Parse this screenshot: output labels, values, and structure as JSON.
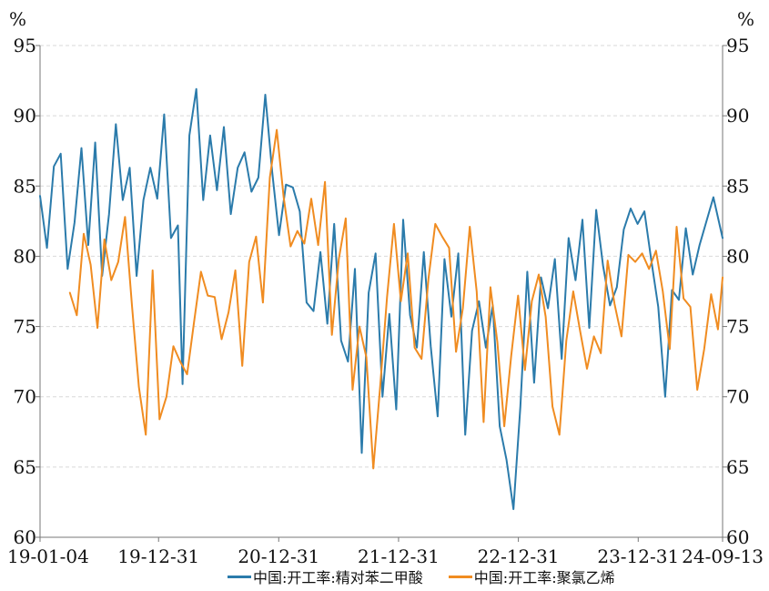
{
  "chart_data": {
    "type": "line",
    "title": "",
    "xlabel": "",
    "ylabel_left": "%",
    "ylabel_right": "%",
    "ylim": [
      60,
      95
    ],
    "yticks": [
      60,
      65,
      70,
      75,
      80,
      85,
      90,
      95
    ],
    "grid": true,
    "x_start": "2019-01-04",
    "x_end": "2024-09-13",
    "xtick_labels": [
      "19-01-04",
      "19-12-31",
      "20-12-31",
      "21-12-31",
      "22-12-31",
      "23-12-31",
      "24-09-13"
    ],
    "xtick_dates": [
      "2019-01-04",
      "2019-12-31",
      "2020-12-31",
      "2021-12-31",
      "2022-12-31",
      "2023-12-31",
      "2024-09-13"
    ],
    "legend_position": "bottom",
    "series": [
      {
        "name": "中国:开工率:精对苯二甲酸",
        "color": "#2b7bab",
        "dates": [
          "2019-01-04",
          "2019-01-25",
          "2019-02-15",
          "2019-03-08",
          "2019-03-29",
          "2019-04-19",
          "2019-05-10",
          "2019-05-31",
          "2019-06-21",
          "2019-07-12",
          "2019-08-02",
          "2019-08-23",
          "2019-09-13",
          "2019-10-04",
          "2019-10-25",
          "2019-11-15",
          "2019-12-06",
          "2019-12-27",
          "2020-01-17",
          "2020-02-07",
          "2020-02-28",
          "2020-03-13",
          "2020-04-03",
          "2020-04-24",
          "2020-05-15",
          "2020-06-05",
          "2020-06-26",
          "2020-07-17",
          "2020-08-07",
          "2020-08-28",
          "2020-09-18",
          "2020-10-09",
          "2020-10-30",
          "2020-11-20",
          "2020-12-11",
          "2021-01-01",
          "2021-01-22",
          "2021-02-12",
          "2021-03-05",
          "2021-03-26",
          "2021-04-16",
          "2021-05-07",
          "2021-05-28",
          "2021-06-18",
          "2021-07-09",
          "2021-07-30",
          "2021-08-20",
          "2021-09-10",
          "2021-10-01",
          "2021-10-22",
          "2021-11-12",
          "2021-12-03",
          "2021-12-24",
          "2022-01-14",
          "2022-02-04",
          "2022-02-25",
          "2022-03-18",
          "2022-04-08",
          "2022-04-29",
          "2022-05-20",
          "2022-06-10",
          "2022-07-01",
          "2022-07-22",
          "2022-08-12",
          "2022-09-02",
          "2022-09-23",
          "2022-10-14",
          "2022-11-04",
          "2022-11-25",
          "2022-12-16",
          "2023-01-06",
          "2023-01-27",
          "2023-02-17",
          "2023-03-10",
          "2023-03-31",
          "2023-04-21",
          "2023-05-12",
          "2023-06-02",
          "2023-06-23",
          "2023-07-14",
          "2023-08-04",
          "2023-08-25",
          "2023-09-15",
          "2023-10-06",
          "2023-10-27",
          "2023-11-17",
          "2023-12-08",
          "2023-12-29",
          "2024-01-19",
          "2024-02-09",
          "2024-03-01",
          "2024-03-22",
          "2024-04-12",
          "2024-05-03",
          "2024-05-24",
          "2024-06-14",
          "2024-07-05",
          "2024-07-26",
          "2024-08-16",
          "2024-09-13"
        ],
        "values": [
          84.3,
          80.6,
          86.4,
          87.3,
          79.1,
          82.4,
          87.7,
          80.8,
          88.1,
          78.6,
          83.0,
          89.4,
          84.0,
          86.3,
          78.6,
          84.0,
          86.3,
          84.1,
          90.1,
          81.3,
          82.2,
          70.9,
          88.6,
          91.9,
          84.0,
          88.6,
          84.7,
          89.2,
          83.0,
          86.3,
          87.4,
          84.6,
          85.6,
          91.5,
          86.0,
          81.5,
          85.1,
          84.9,
          83.2,
          76.7,
          76.1,
          80.3,
          75.2,
          82.3,
          74.0,
          72.5,
          79.1,
          66.0,
          77.4,
          80.2,
          70.0,
          75.9,
          69.1,
          82.6,
          75.8,
          73.5,
          80.3,
          73.6,
          68.6,
          79.8,
          75.7,
          80.2,
          67.3,
          74.7,
          76.8,
          73.5,
          76.5,
          67.9,
          65.5,
          62.0,
          69.3,
          78.9,
          71.0,
          78.5,
          76.3,
          79.8,
          72.7,
          81.3,
          78.3,
          82.6,
          74.9,
          83.3,
          79.3,
          76.5,
          77.8,
          81.9,
          83.4,
          82.3,
          83.2,
          79.7,
          76.4,
          70.0,
          77.6,
          76.9,
          82.0,
          78.7,
          80.8,
          82.5,
          84.2,
          81.3
        ]
      },
      {
        "name": "中国:开工率:聚氯乙烯",
        "color": "#f08c21",
        "dates": [
          "2019-04-05",
          "2019-04-26",
          "2019-05-17",
          "2019-06-07",
          "2019-06-28",
          "2019-07-19",
          "2019-08-09",
          "2019-08-30",
          "2019-09-20",
          "2019-10-11",
          "2019-11-01",
          "2019-11-22",
          "2019-12-13",
          "2020-01-03",
          "2020-01-24",
          "2020-02-14",
          "2020-03-06",
          "2020-03-27",
          "2020-04-17",
          "2020-05-08",
          "2020-05-29",
          "2020-06-19",
          "2020-07-10",
          "2020-07-31",
          "2020-08-21",
          "2020-09-11",
          "2020-10-02",
          "2020-10-23",
          "2020-11-13",
          "2020-12-04",
          "2020-12-25",
          "2021-01-15",
          "2021-02-05",
          "2021-02-26",
          "2021-03-19",
          "2021-04-09",
          "2021-04-30",
          "2021-05-21",
          "2021-06-11",
          "2021-07-02",
          "2021-07-23",
          "2021-08-13",
          "2021-09-03",
          "2021-09-24",
          "2021-10-15",
          "2021-11-05",
          "2021-11-26",
          "2021-12-17",
          "2022-01-07",
          "2022-01-28",
          "2022-02-18",
          "2022-03-11",
          "2022-04-01",
          "2022-04-22",
          "2022-05-13",
          "2022-06-03",
          "2022-06-24",
          "2022-07-15",
          "2022-08-05",
          "2022-08-26",
          "2022-09-16",
          "2022-10-07",
          "2022-10-28",
          "2022-11-18",
          "2022-12-09",
          "2022-12-30",
          "2023-01-20",
          "2023-02-10",
          "2023-03-03",
          "2023-03-24",
          "2023-04-14",
          "2023-05-05",
          "2023-05-26",
          "2023-06-16",
          "2023-07-07",
          "2023-07-28",
          "2023-08-18",
          "2023-09-08",
          "2023-09-29",
          "2023-10-20",
          "2023-11-10",
          "2023-12-01",
          "2023-12-22",
          "2024-01-12",
          "2024-02-02",
          "2024-02-23",
          "2024-03-15",
          "2024-04-05",
          "2024-04-26",
          "2024-05-17",
          "2024-06-07",
          "2024-06-28",
          "2024-07-19",
          "2024-08-09",
          "2024-08-30",
          "2024-09-13"
        ],
        "values": [
          77.4,
          75.8,
          81.6,
          79.4,
          74.9,
          81.2,
          78.3,
          79.6,
          82.8,
          76.5,
          70.7,
          67.3,
          79.0,
          68.4,
          70.0,
          73.6,
          72.5,
          71.6,
          75.3,
          78.9,
          77.2,
          77.1,
          74.1,
          76.0,
          79.0,
          72.2,
          79.6,
          81.4,
          76.7,
          85.6,
          89.0,
          84.2,
          80.7,
          81.8,
          80.9,
          84.1,
          80.8,
          85.3,
          74.4,
          79.8,
          82.7,
          70.5,
          75.0,
          72.8,
          64.9,
          70.7,
          77.1,
          82.3,
          76.8,
          80.2,
          73.5,
          72.7,
          78.4,
          82.3,
          81.4,
          80.6,
          73.2,
          76.3,
          82.1,
          77.5,
          68.2,
          77.8,
          73.9,
          67.9,
          72.9,
          77.2,
          71.9,
          76.8,
          78.7,
          75.7,
          69.3,
          67.3,
          74.0,
          77.5,
          74.7,
          72.0,
          74.3,
          73.1,
          79.7,
          76.6,
          74.3,
          80.1,
          79.6,
          80.2,
          79.1,
          80.4,
          77.5,
          73.4,
          82.1,
          77.0,
          76.4,
          70.5,
          73.4,
          77.3,
          74.8,
          78.5
        ]
      }
    ]
  }
}
